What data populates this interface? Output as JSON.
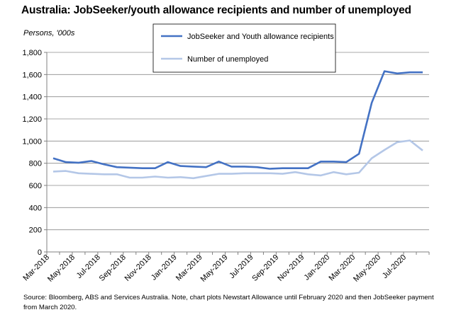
{
  "title": "Australia: JobSeeker/youth allowance recipients and number of unemployed",
  "unit_label": "Persons, '000s",
  "source_note": "Source: Bloomberg, ABS and Services Australia.  Note, chart plots Newstart Allowance until February 2020 and then JobSeeker payment from March 2020.",
  "chart_data": {
    "type": "line",
    "title": "Australia: JobSeeker/youth allowance recipients and number of unemployed",
    "ylabel": "Persons, '000s",
    "ylim": [
      0,
      1800
    ],
    "yticks": [
      0,
      200,
      400,
      600,
      800,
      1000,
      1200,
      1400,
      1600,
      1800
    ],
    "ytick_labels": [
      "0",
      "200",
      "400",
      "600",
      "800",
      "1,000",
      "1,200",
      "1,400",
      "1,600",
      "1,800"
    ],
    "x": [
      "Mar-2018",
      "Apr-2018",
      "May-2018",
      "Jun-2018",
      "Jul-2018",
      "Aug-2018",
      "Sep-2018",
      "Oct-2018",
      "Nov-2018",
      "Dec-2018",
      "Jan-2019",
      "Feb-2019",
      "Mar-2019",
      "Apr-2019",
      "May-2019",
      "Jun-2019",
      "Jul-2019",
      "Aug-2019",
      "Sep-2019",
      "Oct-2019",
      "Nov-2019",
      "Dec-2019",
      "Jan-2020",
      "Feb-2020",
      "Mar-2020",
      "Apr-2020",
      "May-2020",
      "Jun-2020",
      "Jul-2020",
      "Aug-2020"
    ],
    "xtick_labels": [
      "Mar-2018",
      "May-2018",
      "Jul-2018",
      "Sep-2018",
      "Nov-2018",
      "Jan-2019",
      "Mar-2019",
      "May-2019",
      "Jul-2019",
      "Sep-2019",
      "Nov-2019",
      "Jan-2020",
      "Mar-2020",
      "May-2020",
      "Jul-2020"
    ],
    "grid": true,
    "legend_position": "top-center",
    "series": [
      {
        "name": "JobSeeker and Youth allowance recipients",
        "color": "#4472c4",
        "values": [
          845,
          810,
          805,
          820,
          790,
          765,
          760,
          755,
          755,
          810,
          775,
          770,
          765,
          815,
          770,
          770,
          765,
          750,
          755,
          755,
          755,
          815,
          815,
          810,
          885,
          1345,
          1630,
          1610,
          1620,
          1620
        ]
      },
      {
        "name": "Number of unemployed",
        "color": "#b4c7e7",
        "values": [
          725,
          730,
          710,
          705,
          700,
          700,
          670,
          670,
          680,
          670,
          675,
          665,
          685,
          705,
          705,
          710,
          710,
          710,
          705,
          720,
          700,
          690,
          720,
          700,
          715,
          845,
          920,
          990,
          1005,
          915
        ]
      }
    ]
  }
}
